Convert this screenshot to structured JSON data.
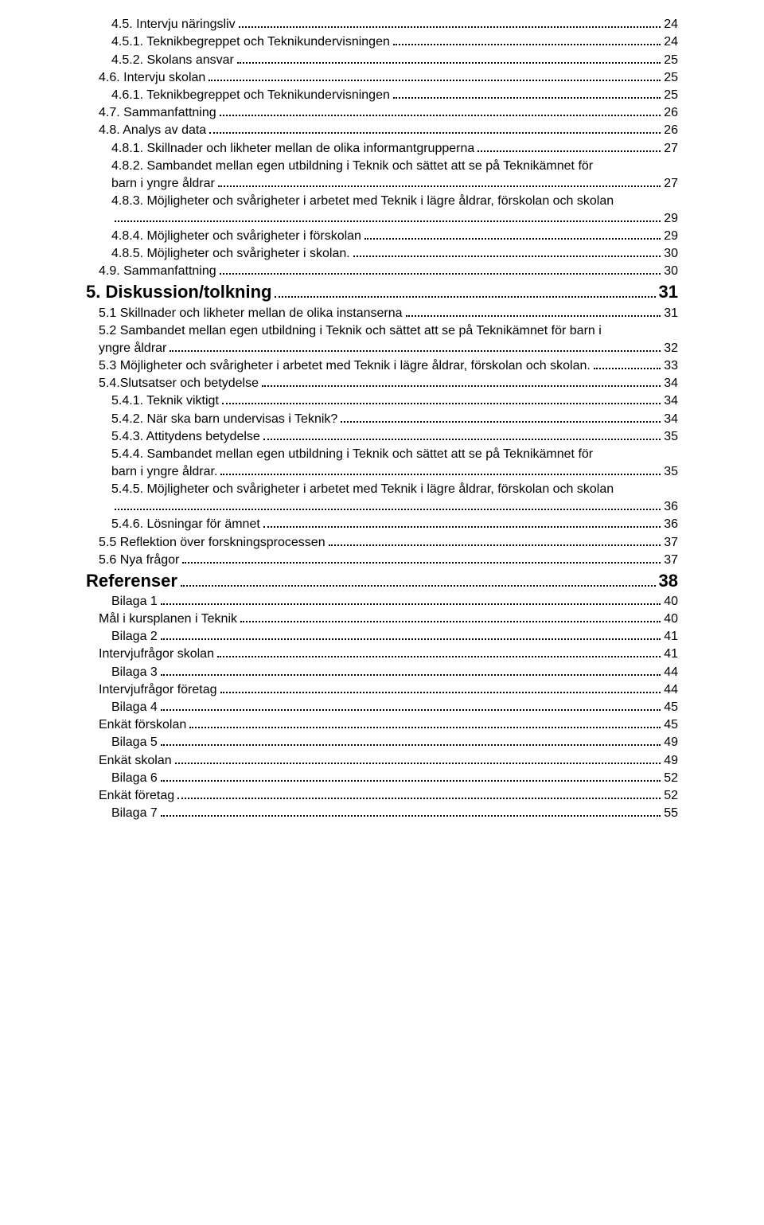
{
  "toc": [
    {
      "indent": 2,
      "level": "h3",
      "title": "4.5. Intervju näringsliv",
      "page": "24"
    },
    {
      "indent": 2,
      "level": "h3",
      "title": "4.5.1. Teknikbegreppet och Teknikundervisningen",
      "page": "24"
    },
    {
      "indent": 2,
      "level": "h3",
      "title": "4.5.2. Skolans ansvar",
      "page": "25"
    },
    {
      "indent": 1,
      "level": "h2",
      "title": "4.6. Intervju skolan",
      "page": "25"
    },
    {
      "indent": 2,
      "level": "h3",
      "title": "4.6.1. Teknikbegreppet och Teknikundervisningen",
      "page": "25"
    },
    {
      "indent": 1,
      "level": "h2",
      "title": "4.7. Sammanfattning",
      "page": "26"
    },
    {
      "indent": 1,
      "level": "h2",
      "title": "4.8. Analys av data",
      "page": "26"
    },
    {
      "indent": 2,
      "level": "h3",
      "title": "4.8.1. Skillnader och likheter mellan de olika informantgrupperna",
      "page": "27"
    },
    {
      "indent": 2,
      "level": "h3",
      "title": "4.8.2. Sambandet mellan egen utbildning i Teknik och sättet att se på Teknikämnet för",
      "page": null
    },
    {
      "indent": 2,
      "level": "h3",
      "title": "barn i yngre åldrar",
      "page": "27"
    },
    {
      "indent": 2,
      "level": "h3",
      "title": "4.8.3. Möjligheter och svårigheter i arbetet med Teknik i lägre åldrar, förskolan och skolan",
      "page": null
    },
    {
      "indent": 2,
      "level": "h3",
      "title": "",
      "page": "29",
      "continuation": true
    },
    {
      "indent": 2,
      "level": "h3",
      "title": "4.8.4. Möjligheter och svårigheter i förskolan",
      "page": "29"
    },
    {
      "indent": 2,
      "level": "h3",
      "title": "4.8.5. Möjligheter och svårigheter i skolan.",
      "page": "30"
    },
    {
      "indent": 1,
      "level": "h2",
      "title": "4.9. Sammanfattning",
      "page": "30"
    },
    {
      "indent": 0,
      "level": "h1",
      "title": "5. Diskussion/tolkning",
      "page": "31"
    },
    {
      "indent": 1,
      "level": "h2",
      "title": "5.1 Skillnader och likheter mellan de olika instanserna",
      "page": "31"
    },
    {
      "indent": 1,
      "level": "h2",
      "title": "5.2 Sambandet mellan egen utbildning i Teknik och sättet att se på Teknikämnet för barn i",
      "page": null
    },
    {
      "indent": 1,
      "level": "h2",
      "title": "yngre åldrar",
      "page": "32"
    },
    {
      "indent": 1,
      "level": "h2",
      "title": "5.3 Möjligheter och svårigheter i arbetet med Teknik i lägre åldrar, förskolan och skolan.",
      "page": "33"
    },
    {
      "indent": 1,
      "level": "h2",
      "title": "5.4.Slutsatser och betydelse",
      "page": "34"
    },
    {
      "indent": 2,
      "level": "h3",
      "title": "5.4.1. Teknik viktigt",
      "page": "34"
    },
    {
      "indent": 2,
      "level": "h3",
      "title": "5.4.2. När ska barn undervisas i Teknik?",
      "page": "34"
    },
    {
      "indent": 2,
      "level": "h3",
      "title": "5.4.3. Attitydens betydelse",
      "page": "35"
    },
    {
      "indent": 2,
      "level": "h3",
      "title": "5.4.4. Sambandet mellan egen utbildning i Teknik och sättet att se på Teknikämnet för",
      "page": null
    },
    {
      "indent": 2,
      "level": "h3",
      "title": "barn i yngre åldrar.",
      "page": "35"
    },
    {
      "indent": 2,
      "level": "h3",
      "title": "5.4.5. Möjligheter och svårigheter i arbetet med Teknik i lägre åldrar, förskolan och skolan",
      "page": null
    },
    {
      "indent": 2,
      "level": "h3",
      "title": "",
      "page": "36",
      "continuation": true
    },
    {
      "indent": 2,
      "level": "h3",
      "title": "5.4.6. Lösningar för ämnet",
      "page": "36"
    },
    {
      "indent": 1,
      "level": "h2",
      "title": "5.5 Reflektion över forskningsprocessen",
      "page": "37"
    },
    {
      "indent": 1,
      "level": "h2",
      "title": "5.6 Nya frågor",
      "page": "37"
    },
    {
      "indent": 0,
      "level": "h1",
      "title": "Referenser",
      "page": "38"
    },
    {
      "indent": 2,
      "level": "h3",
      "title": "Bilaga 1",
      "page": "40"
    },
    {
      "indent": 1,
      "level": "h2",
      "title": "Mål i kursplanen i Teknik",
      "page": "40"
    },
    {
      "indent": 2,
      "level": "h3",
      "title": "Bilaga 2",
      "page": "41"
    },
    {
      "indent": 1,
      "level": "h2",
      "title": "Intervjufrågor skolan",
      "page": "41"
    },
    {
      "indent": 2,
      "level": "h3",
      "title": "Bilaga 3",
      "page": "44"
    },
    {
      "indent": 1,
      "level": "h2",
      "title": "Intervjufrågor företag",
      "page": "44"
    },
    {
      "indent": 2,
      "level": "h3",
      "title": "Bilaga 4",
      "page": "45"
    },
    {
      "indent": 1,
      "level": "h2",
      "title": "Enkät förskolan",
      "page": "45"
    },
    {
      "indent": 2,
      "level": "h3",
      "title": "Bilaga 5",
      "page": "49"
    },
    {
      "indent": 1,
      "level": "h2",
      "title": "Enkät skolan",
      "page": "49"
    },
    {
      "indent": 2,
      "level": "h3",
      "title": "Bilaga 6",
      "page": "52"
    },
    {
      "indent": 1,
      "level": "h2",
      "title": "Enkät företag",
      "page": "52"
    },
    {
      "indent": 2,
      "level": "h3",
      "title": "Bilaga 7",
      "page": "55"
    }
  ]
}
